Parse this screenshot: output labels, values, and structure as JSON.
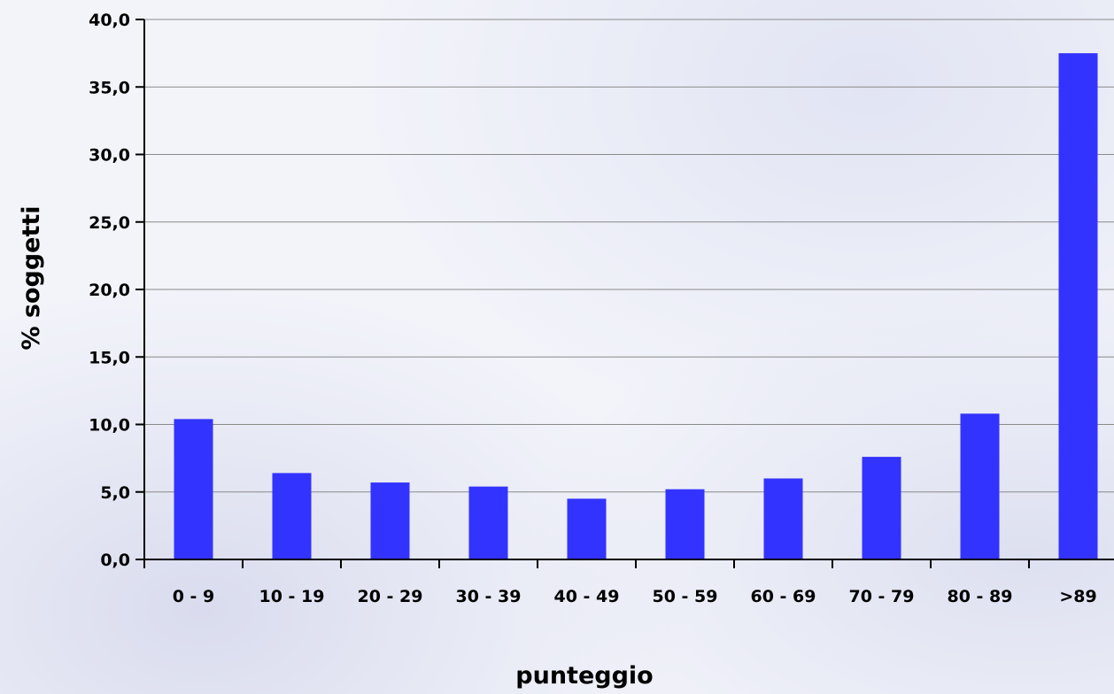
{
  "chart_data": {
    "type": "bar",
    "categories": [
      "0 - 9",
      "10 - 19",
      "20 - 29",
      "30 - 39",
      "40 - 49",
      "50 - 59",
      "60 - 69",
      "70 - 79",
      "80 - 89",
      ">89"
    ],
    "series": [
      {
        "values": [
          10.4,
          6.4,
          5.7,
          5.4,
          4.5,
          5.2,
          6.0,
          7.6,
          10.8,
          37.5
        ]
      }
    ],
    "xlabel": "punteggio",
    "ylabel": "% soggetti",
    "ylim": [
      0,
      40
    ],
    "yticks": [
      "0,0",
      "5,0",
      "10,0",
      "15,0",
      "20,0",
      "25,0",
      "30,0",
      "35,0",
      "40,0"
    ],
    "grid": true,
    "legend": "none",
    "bar_color": "#3333ff"
  }
}
